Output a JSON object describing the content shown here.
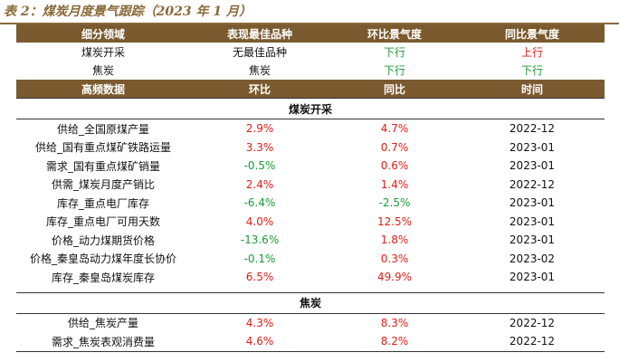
{
  "title": "表 2：煤炭月度景气跟踪（2023 年 1 月）",
  "top_table": {
    "headers": [
      "细分领域",
      "表现最佳品种",
      "环比景气度",
      "同比景气度"
    ],
    "rows": [
      {
        "field": "煤炭开采",
        "best": "无最佳品种",
        "mom": "下行",
        "yoy": "上行"
      },
      {
        "field": "焦炭",
        "best": "焦炭",
        "mom": "下行",
        "yoy": "下行"
      }
    ]
  },
  "data_table": {
    "headers": [
      "高频数据",
      "环比",
      "同比",
      "时间"
    ],
    "sections": [
      {
        "name": "煤炭开采",
        "rows": [
          {
            "item": "供给_全国原煤产量",
            "mom": "2.9%",
            "yoy": "4.7%",
            "time": "2022-12"
          },
          {
            "item": "供给_国有重点煤矿铁路运量",
            "mom": "3.3%",
            "yoy": "0.7%",
            "time": "2023-01"
          },
          {
            "item": "需求_国有重点煤矿销量",
            "mom": "-0.5%",
            "yoy": "0.6%",
            "time": "2023-01"
          },
          {
            "item": "供需_煤炭月度产销比",
            "mom": "2.4%",
            "yoy": "1.4%",
            "time": "2022-12"
          },
          {
            "item": "库存_重点电厂库存",
            "mom": "-6.4%",
            "yoy": "-2.5%",
            "time": "2023-01"
          },
          {
            "item": "库存_重点电厂可用天数",
            "mom": "4.0%",
            "yoy": "12.5%",
            "time": "2023-01"
          },
          {
            "item": "价格_动力煤期货价格",
            "mom": "-13.6%",
            "yoy": "1.8%",
            "time": "2023-01"
          },
          {
            "item": "价格_秦皇岛动力煤年度长协价",
            "mom": "-0.1%",
            "yoy": "0.3%",
            "time": "2023-02"
          },
          {
            "item": "库存_秦皇岛煤炭库存",
            "mom": "6.5%",
            "yoy": "49.9%",
            "time": "2023-01"
          }
        ]
      },
      {
        "name": "焦炭",
        "rows": [
          {
            "item": "供给_焦炭产量",
            "mom": "4.3%",
            "yoy": "8.3%",
            "time": "2022-12"
          },
          {
            "item": "需求_焦炭表观消费量",
            "mom": "4.6%",
            "yoy": "8.2%",
            "time": "2022-12"
          }
        ]
      }
    ]
  },
  "colors": {
    "header_bg": "#7a5a2e",
    "up": "#e0201a",
    "down": "#1a9a3a"
  }
}
